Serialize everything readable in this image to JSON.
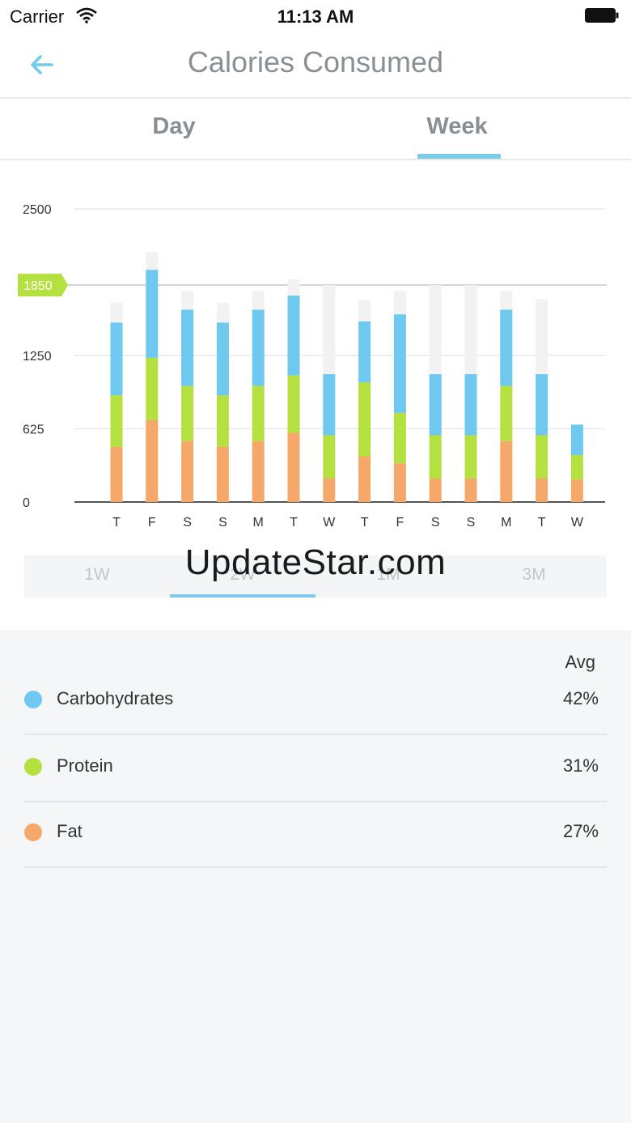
{
  "status_bar": {
    "carrier": "Carrier",
    "time": "11:13 AM"
  },
  "nav": {
    "title": "Calories Consumed"
  },
  "tabs": [
    {
      "label": "Day",
      "selected": false
    },
    {
      "label": "Week",
      "selected": true
    }
  ],
  "range_selector": {
    "options": [
      "1W",
      "2W",
      "1M",
      "3M"
    ],
    "selected": "2W"
  },
  "watermark": "UpdateStar.com",
  "legend": {
    "column_header": "Avg",
    "items": [
      {
        "label": "Carbohydrates",
        "value": "42%",
        "color": "#6ec8ef"
      },
      {
        "label": "Protein",
        "value": "31%",
        "color": "#b4e13f"
      },
      {
        "label": "Fat",
        "value": "27%",
        "color": "#f6a86a"
      }
    ]
  },
  "colors": {
    "accent": "#7dcbea",
    "goal": "#b4e13f",
    "goal_bar": "#f2f2f2"
  },
  "chart_data": {
    "type": "bar",
    "stacked": true,
    "categories": [
      "T",
      "F",
      "S",
      "S",
      "M",
      "T",
      "W",
      "T",
      "F",
      "S",
      "S",
      "M",
      "T",
      "W"
    ],
    "yticks": [
      0,
      625,
      1250,
      2500
    ],
    "ylim": [
      0,
      2500
    ],
    "goal_marker": {
      "label": "1850",
      "value": 1850
    },
    "goal_values": [
      1700,
      2130,
      1800,
      1700,
      1800,
      1900,
      1850,
      1720,
      1800,
      1850,
      1850,
      1800,
      1730,
      0
    ],
    "series": [
      {
        "name": "Fat",
        "color": "#f6a86a",
        "values": [
          470,
          700,
          520,
          470,
          520,
          590,
          200,
          390,
          330,
          200,
          200,
          520,
          200,
          190
        ]
      },
      {
        "name": "Protein",
        "color": "#b4e13f",
        "values": [
          440,
          530,
          470,
          440,
          470,
          490,
          370,
          630,
          430,
          370,
          370,
          470,
          370,
          210
        ]
      },
      {
        "name": "Carbohydrates",
        "color": "#6ec8ef",
        "values": [
          620,
          750,
          650,
          620,
          650,
          680,
          520,
          520,
          840,
          520,
          520,
          650,
          520,
          260
        ]
      }
    ]
  }
}
